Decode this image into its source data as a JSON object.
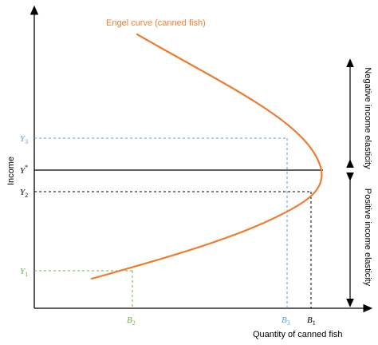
{
  "diagram": {
    "curve_label": "Engel curve (canned fish)",
    "x_axis_label": "Quantity of canned fish",
    "y_axis_label": "Income",
    "region_negative": "Negative income elasticity",
    "region_positive": "Positive income elasticity",
    "y_ticks": {
      "y3": {
        "base": "Y",
        "sub": "3"
      },
      "ystar": {
        "base": "Y",
        "sup": "*"
      },
      "y2": {
        "base": "Y",
        "sub": "2"
      },
      "y1": {
        "base": "Y",
        "sub": "1"
      }
    },
    "x_ticks": {
      "b2": {
        "base": "B",
        "sub": "2"
      },
      "b3": {
        "base": "B",
        "sub": "3"
      },
      "b1": {
        "base": "B",
        "sub": "1"
      }
    }
  },
  "colors": {
    "curve": "#ED7D31",
    "axis": "#000000",
    "y3_b3": "#5B9BD5",
    "y1_b2": "#70AD47",
    "y2_b1": "#000000",
    "ystar_line": "#000000",
    "text": "#000000"
  }
}
